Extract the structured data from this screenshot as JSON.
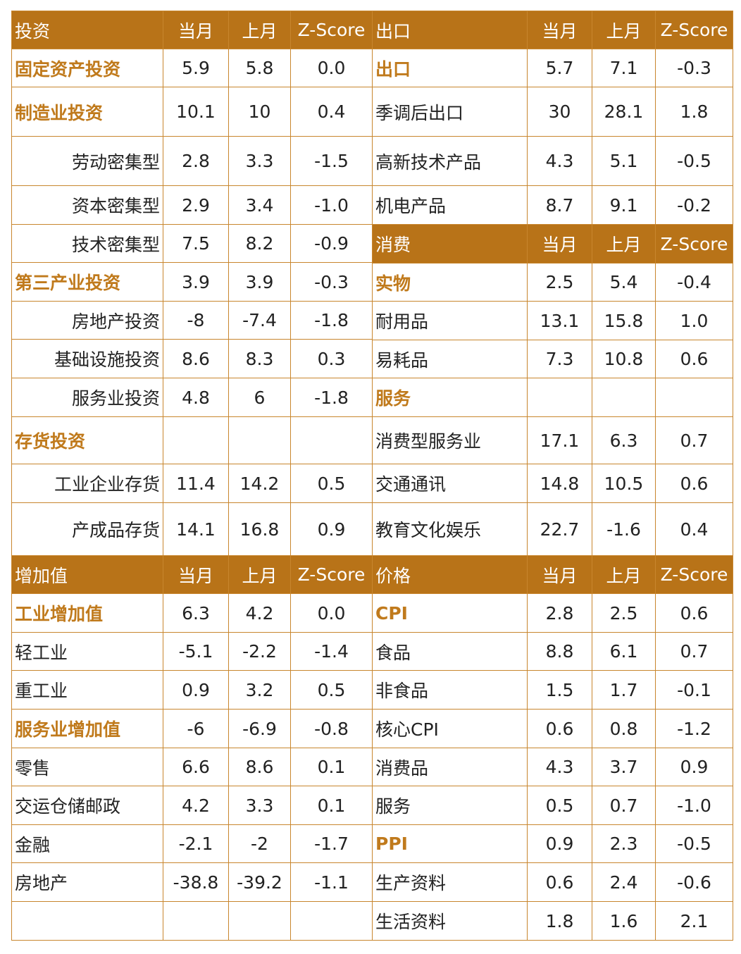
{
  "left": {
    "sections": [
      {
        "header": [
          "投资",
          "当月",
          "上月",
          "Z-Score"
        ],
        "rows": [
          {
            "label": "固定资产投资",
            "style": "bold",
            "v": [
              "5.9",
              "5.8",
              "0.0"
            ]
          },
          {
            "label": "制造业投资",
            "style": "bold",
            "v": [
              "10.1",
              "10",
              "0.4"
            ]
          },
          {
            "label": "劳动密集型",
            "style": "indent",
            "v": [
              "2.8",
              "3.3",
              "-1.5"
            ]
          },
          {
            "label": "资本密集型",
            "style": "indent",
            "v": [
              "2.9",
              "3.4",
              "-1.0"
            ]
          },
          {
            "label": "技术密集型",
            "style": "indent",
            "v": [
              "7.5",
              "8.2",
              "-0.9"
            ]
          },
          {
            "label": "第三产业投资",
            "style": "bold",
            "v": [
              "3.9",
              "3.9",
              "-0.3"
            ]
          },
          {
            "label": "房地产投资",
            "style": "indent",
            "v": [
              "-8",
              "-7.4",
              "-1.8"
            ]
          },
          {
            "label": "基础设施投资",
            "style": "indent",
            "v": [
              "8.6",
              "8.3",
              "0.3"
            ]
          },
          {
            "label": "服务业投资",
            "style": "indent",
            "v": [
              "4.8",
              "6",
              "-1.8"
            ]
          },
          {
            "label": "存货投资",
            "style": "bold",
            "v": [
              "",
              "",
              ""
            ]
          },
          {
            "label": "工业企业存货",
            "style": "indent",
            "v": [
              "11.4",
              "14.2",
              "0.5"
            ]
          },
          {
            "label": "产成品存货",
            "style": "indent",
            "v": [
              "14.1",
              "16.8",
              "0.9"
            ]
          }
        ]
      },
      {
        "header": [
          "增加值",
          "当月",
          "上月",
          "Z-Score"
        ],
        "rows": [
          {
            "label": "工业增加值",
            "style": "bold",
            "v": [
              "6.3",
              "4.2",
              "0.0"
            ]
          },
          {
            "label": "轻工业",
            "style": "plain",
            "v": [
              "-5.1",
              "-2.2",
              "-1.4"
            ]
          },
          {
            "label": "重工业",
            "style": "plain",
            "v": [
              "0.9",
              "3.2",
              "0.5"
            ]
          },
          {
            "label": "服务业增加值",
            "style": "bold",
            "v": [
              "-6",
              "-6.9",
              "-0.8"
            ]
          },
          {
            "label": "零售",
            "style": "plain",
            "v": [
              "6.6",
              "8.6",
              "0.1"
            ]
          },
          {
            "label": "交运仓储邮政",
            "style": "plain",
            "v": [
              "4.2",
              "3.3",
              "0.1"
            ]
          },
          {
            "label": "金融",
            "style": "plain",
            "v": [
              "-2.1",
              "-2",
              "-1.7"
            ]
          },
          {
            "label": "房地产",
            "style": "plain",
            "v": [
              "-38.8",
              "-39.2",
              "-1.1"
            ]
          },
          {
            "label": "",
            "style": "plain",
            "v": [
              "",
              "",
              ""
            ]
          }
        ]
      }
    ]
  },
  "right": {
    "sections": [
      {
        "header": [
          "出口",
          "当月",
          "上月",
          "Z-Score"
        ],
        "rows": [
          {
            "label": "出口",
            "style": "bold",
            "v": [
              "5.7",
              "7.1",
              "-0.3"
            ]
          },
          {
            "label": "季调后出口",
            "style": "plain",
            "v": [
              "30",
              "28.1",
              "1.8"
            ]
          },
          {
            "label": "高新技术产品",
            "style": "plain",
            "v": [
              "4.3",
              "5.1",
              "-0.5"
            ]
          },
          {
            "label": "机电产品",
            "style": "plain",
            "v": [
              "8.7",
              "9.1",
              "-0.2"
            ]
          }
        ]
      },
      {
        "header": [
          "消费",
          "当月",
          "上月",
          "Z-Score"
        ],
        "rows": [
          {
            "label": "实物",
            "style": "bold",
            "v": [
              "2.5",
              "5.4",
              "-0.4"
            ]
          },
          {
            "label": "耐用品",
            "style": "plain",
            "v": [
              "13.1",
              "15.8",
              "1.0"
            ]
          },
          {
            "label": "易耗品",
            "style": "plain",
            "v": [
              "7.3",
              "10.8",
              "0.6"
            ]
          },
          {
            "label": "服务",
            "style": "bold",
            "v": [
              "",
              "",
              ""
            ]
          },
          {
            "label": "消费型服务业",
            "style": "plain",
            "v": [
              "17.1",
              "6.3",
              "0.7"
            ]
          },
          {
            "label": "交通通讯",
            "style": "plain",
            "v": [
              "14.8",
              "10.5",
              "0.6"
            ]
          },
          {
            "label": "教育文化娱乐",
            "style": "plain",
            "v": [
              "22.7",
              "-1.6",
              "0.4"
            ]
          }
        ]
      },
      {
        "header": [
          "价格",
          "当月",
          "上月",
          "Z-Score"
        ],
        "rows": [
          {
            "label": "CPI",
            "style": "bold",
            "v": [
              "2.8",
              "2.5",
              "0.6"
            ]
          },
          {
            "label": "食品",
            "style": "plain",
            "v": [
              "8.8",
              "6.1",
              "0.7"
            ]
          },
          {
            "label": "非食品",
            "style": "plain",
            "v": [
              "1.5",
              "1.7",
              "-0.1"
            ]
          },
          {
            "label": "核心CPI",
            "style": "plain",
            "v": [
              "0.6",
              "0.8",
              "-1.2"
            ]
          },
          {
            "label": "消费品",
            "style": "plain",
            "v": [
              "4.3",
              "3.7",
              "0.9"
            ]
          },
          {
            "label": "服务",
            "style": "plain",
            "v": [
              "0.5",
              "0.7",
              "-1.0"
            ]
          },
          {
            "label": "PPI",
            "style": "bold",
            "v": [
              "0.9",
              "2.3",
              "-0.5"
            ]
          },
          {
            "label": "生产资料",
            "style": "plain",
            "v": [
              "0.6",
              "2.4",
              "-0.6"
            ]
          },
          {
            "label": "生活资料",
            "style": "plain",
            "v": [
              "1.8",
              "1.6",
              "2.1"
            ]
          }
        ]
      }
    ]
  },
  "colors": {
    "header_bg": "#b87318",
    "header_text": "#ffffff",
    "bold_label": "#c07a1c",
    "border": "#c8862e",
    "text": "#222222"
  },
  "chart_data": {
    "type": "table",
    "columns": [
      "当月",
      "上月",
      "Z-Score"
    ],
    "panels": [
      "投资",
      "增加值",
      "出口",
      "消费",
      "价格"
    ]
  }
}
